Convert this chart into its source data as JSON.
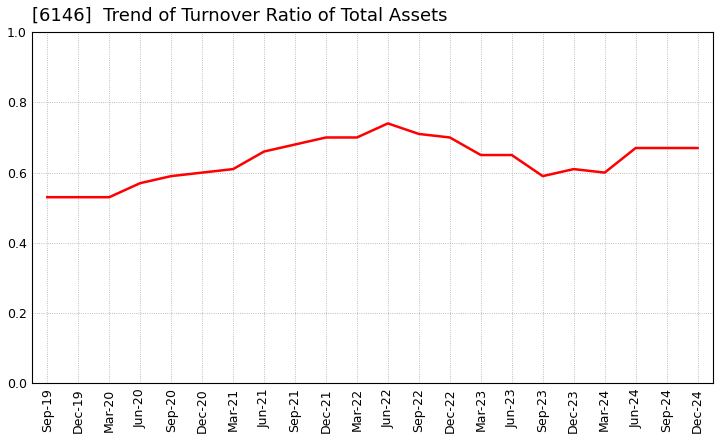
{
  "title": "[6146]  Trend of Turnover Ratio of Total Assets",
  "x_labels": [
    "Sep-19",
    "Dec-19",
    "Mar-20",
    "Jun-20",
    "Sep-20",
    "Dec-20",
    "Mar-21",
    "Jun-21",
    "Sep-21",
    "Dec-21",
    "Mar-22",
    "Jun-22",
    "Sep-22",
    "Dec-22",
    "Mar-23",
    "Jun-23",
    "Sep-23",
    "Dec-23",
    "Mar-24",
    "Jun-24",
    "Sep-24",
    "Dec-24"
  ],
  "y_values": [
    0.53,
    0.53,
    0.53,
    0.57,
    0.59,
    0.6,
    0.61,
    0.66,
    0.68,
    0.7,
    0.7,
    0.74,
    0.71,
    0.7,
    0.65,
    0.65,
    0.59,
    0.61,
    0.6,
    0.67,
    0.67,
    0.67
  ],
  "line_color": "#FF0000",
  "ylim": [
    0.0,
    1.0
  ],
  "yticks": [
    0.0,
    0.2,
    0.4,
    0.6,
    0.8,
    1.0
  ],
  "grid_color": "#AAAAAA",
  "background_color": "#FFFFFF",
  "title_fontsize": 13,
  "tick_fontsize": 9,
  "line_width": 1.8,
  "title_fontweight": "normal"
}
